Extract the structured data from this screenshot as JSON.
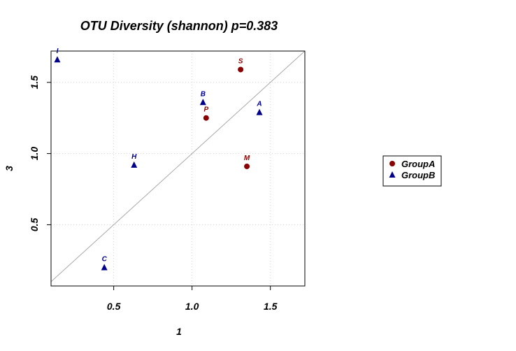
{
  "chart_data": {
    "type": "scatter",
    "title": "OTU Diversity (shannon) p=0.383",
    "xlabel": "1",
    "ylabel": "3",
    "xlim": [
      0.1,
      1.72
    ],
    "ylim": [
      0.07,
      1.72
    ],
    "xticks": [
      0.5,
      1.0,
      1.5
    ],
    "xtick_labels": [
      "0.5",
      "1.0",
      "1.5"
    ],
    "yticks": [
      0.5,
      1.0,
      1.5
    ],
    "ytick_labels": [
      "0.5",
      "1.0",
      "1.5"
    ],
    "grid": true,
    "diagonal_reference_line": true,
    "legend_position": "right",
    "series": [
      {
        "name": "GroupA",
        "marker": "circle",
        "color": "#8b0000",
        "points": [
          {
            "label": "S",
            "x": 1.31,
            "y": 1.59
          },
          {
            "label": "P",
            "x": 1.09,
            "y": 1.25
          },
          {
            "label": "M",
            "x": 1.35,
            "y": 0.91
          }
        ]
      },
      {
        "name": "GroupB",
        "marker": "triangle",
        "color": "#00008b",
        "points": [
          {
            "label": "I",
            "x": 0.14,
            "y": 1.66
          },
          {
            "label": "B",
            "x": 1.07,
            "y": 1.36
          },
          {
            "label": "A",
            "x": 1.43,
            "y": 1.29
          },
          {
            "label": "H",
            "x": 0.63,
            "y": 0.92
          },
          {
            "label": "C",
            "x": 0.44,
            "y": 0.2
          }
        ]
      }
    ]
  }
}
